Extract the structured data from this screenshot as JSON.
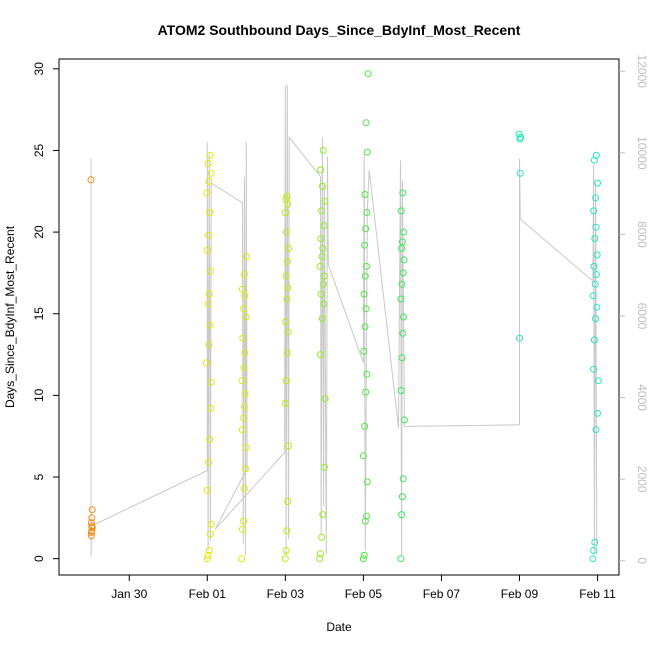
{
  "chart_data": {
    "type": "scatter",
    "title": "ATOM2 Southbound Days_Since_BdyInf_Most_Recent",
    "xlabel": "Date",
    "ylabel": "Days_Since_BdyInf_Most_Recent",
    "x_ticks": [
      "Jan 30",
      "Feb 01",
      "Feb 03",
      "Feb 05",
      "Feb 07",
      "Feb 09",
      "Feb 11"
    ],
    "y_ticks": [
      "0",
      "5",
      "10",
      "15",
      "20",
      "25",
      "30"
    ],
    "y2_ticks": [
      "0",
      "2000",
      "4000",
      "6000",
      "8000",
      "10000",
      "12000"
    ],
    "xlim_days_from_jan30": [
      -1.8,
      12.55
    ],
    "ylim": [
      -1.0,
      30.6
    ],
    "y2lim": [
      -350,
      12300
    ],
    "grid": false,
    "series": [
      {
        "color": "#f08c14",
        "x": [
          -0.98,
          -0.97,
          -0.96,
          -0.95,
          -0.97,
          -0.96,
          -0.95,
          -0.97,
          -0.96
        ],
        "y": [
          23.2,
          1.4,
          1.7,
          1.9,
          2.2,
          2.5,
          3.0,
          1.6,
          2.0
        ]
      },
      {
        "color": "#e6e600",
        "x": [
          2.0,
          2.02,
          2.05,
          2.08,
          2.1,
          2.0,
          2.03,
          2.06,
          2.09,
          2.1,
          1.98,
          2.04,
          2.07,
          2.02,
          2.05,
          2.08,
          2.0,
          2.03,
          2.06,
          1.99,
          2.04,
          2.1,
          2.02,
          2.07
        ],
        "y": [
          0.0,
          0.2,
          0.5,
          1.5,
          2.1,
          4.2,
          5.9,
          7.3,
          9.2,
          10.8,
          12.0,
          13.1,
          14.3,
          15.6,
          16.2,
          17.6,
          18.9,
          19.8,
          21.2,
          22.4,
          23.1,
          23.6,
          24.2,
          24.7
        ]
      },
      {
        "color": "#d8f000",
        "x": [
          2.88,
          2.9,
          2.93,
          2.95,
          2.98,
          3.0,
          2.9,
          2.92,
          2.95,
          2.97,
          2.89,
          2.94,
          2.96,
          2.91,
          2.99,
          2.93,
          2.96,
          2.9,
          2.95,
          3.0
        ],
        "y": [
          0.0,
          1.8,
          2.3,
          4.3,
          5.5,
          6.8,
          7.9,
          8.6,
          9.3,
          10.1,
          10.9,
          11.7,
          12.6,
          13.5,
          14.8,
          15.3,
          16.1,
          16.5,
          17.4,
          18.5
        ]
      },
      {
        "color": "#b8f000",
        "x": [
          4.0,
          4.02,
          4.04,
          4.06,
          4.08,
          4.0,
          4.03,
          4.05,
          4.07,
          4.01,
          4.04,
          4.06,
          4.02,
          4.05,
          4.08,
          4.03,
          4.0,
          4.06,
          4.04,
          4.02
        ],
        "y": [
          0.0,
          0.5,
          1.7,
          3.5,
          6.9,
          9.5,
          10.9,
          12.6,
          13.9,
          14.5,
          15.9,
          16.6,
          17.3,
          18.2,
          19.0,
          20.0,
          21.2,
          21.7,
          22.2,
          22.0
        ]
      },
      {
        "color": "#90f020",
        "x": [
          4.88,
          4.9,
          4.93,
          4.96,
          5.0,
          5.02,
          4.9,
          4.95,
          4.98,
          4.92,
          4.97,
          5.0,
          4.89,
          4.94,
          4.96,
          4.91,
          4.99,
          4.93,
          5.01,
          4.95,
          4.9,
          4.97
        ],
        "y": [
          0.0,
          0.3,
          1.3,
          2.7,
          5.6,
          9.8,
          12.5,
          14.7,
          15.6,
          16.2,
          16.8,
          17.3,
          17.9,
          18.5,
          19.0,
          19.6,
          20.4,
          21.3,
          21.9,
          22.8,
          23.8,
          25.0
        ]
      },
      {
        "color": "#50e840",
        "x": [
          6.0,
          6.02,
          6.05,
          6.08,
          6.1,
          6.0,
          6.03,
          6.06,
          6.09,
          6.01,
          6.04,
          6.07,
          6.02,
          6.05,
          6.08,
          6.03,
          6.06,
          6.09,
          6.04,
          6.1,
          6.07,
          6.12
        ],
        "y": [
          0.0,
          0.2,
          2.3,
          2.6,
          4.7,
          6.3,
          8.1,
          10.2,
          11.3,
          12.7,
          14.2,
          15.3,
          16.2,
          17.3,
          17.9,
          19.2,
          20.2,
          21.2,
          22.3,
          24.9,
          26.7,
          29.7
        ]
      },
      {
        "color": "#3ae858",
        "x": [
          6.96,
          6.98,
          7.0,
          7.02,
          7.05,
          6.97,
          6.99,
          7.01,
          7.03,
          6.96,
          6.99,
          7.02,
          7.04,
          6.98,
          7.0,
          7.03,
          6.97,
          7.01
        ],
        "y": [
          0.0,
          2.7,
          3.8,
          4.9,
          8.5,
          10.3,
          12.3,
          13.8,
          14.8,
          15.9,
          16.8,
          17.5,
          18.3,
          19.0,
          19.4,
          20.0,
          21.3,
          22.4
        ]
      },
      {
        "color": "#20e8b0",
        "x": [
          10.0,
          10.02,
          10.03,
          9.99,
          10.01
        ],
        "y": [
          13.5,
          23.6,
          25.8,
          26.0,
          25.7
        ]
      },
      {
        "color": "#20e8c8",
        "x": [
          11.88,
          11.9,
          11.93,
          11.96,
          12.0,
          12.02,
          11.9,
          11.92,
          11.95,
          11.98,
          11.89,
          11.94,
          11.97,
          11.91,
          11.99,
          11.93,
          11.96,
          11.9,
          11.95,
          12.0,
          11.92,
          11.97
        ],
        "y": [
          0.0,
          0.5,
          1.0,
          7.9,
          8.9,
          10.9,
          11.6,
          13.4,
          14.7,
          15.4,
          16.1,
          16.8,
          17.4,
          17.9,
          18.6,
          19.6,
          20.3,
          21.3,
          22.1,
          23.0,
          24.4,
          24.7
        ]
      }
    ]
  }
}
